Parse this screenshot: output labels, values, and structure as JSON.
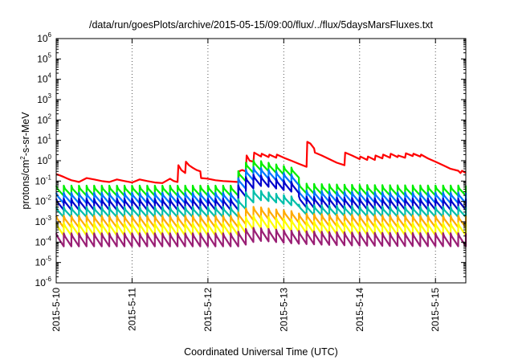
{
  "chart_data": {
    "type": "line",
    "title": "/data/run/goesPlots/archive/2015-05-15/09:00/flux/../flux/5daysMarsFluxes.txt",
    "xlabel": "Coordinated Universal Time (UTC)",
    "ylabel": "protons/cm²-s-sr-MeV",
    "yscale": "log",
    "ylim": [
      1e-06,
      1000000.0
    ],
    "xlim": [
      0,
      5.4
    ],
    "x_unit": "days since 2015-5-10 00:00 UTC",
    "grid": "dotted vertical lines at day boundaries",
    "xticks": [
      {
        "x": 0,
        "label": "2015-5-10"
      },
      {
        "x": 1,
        "label": "2015-5-11"
      },
      {
        "x": 2,
        "label": "2015-5-12"
      },
      {
        "x": 3,
        "label": "2015-5-13"
      },
      {
        "x": 4,
        "label": "2015-5-14"
      },
      {
        "x": 5,
        "label": "2015-5-15"
      }
    ],
    "yticks": [
      {
        "value": 1e-06,
        "base": "10",
        "exp": "-6"
      },
      {
        "value": 1e-05,
        "base": "10",
        "exp": "-5"
      },
      {
        "value": 0.0001,
        "base": "10",
        "exp": "-4"
      },
      {
        "value": 0.001,
        "base": "10",
        "exp": "-3"
      },
      {
        "value": 0.01,
        "base": "10",
        "exp": "-2"
      },
      {
        "value": 0.1,
        "base": "10",
        "exp": "-1"
      },
      {
        "value": 1.0,
        "base": "10",
        "exp": "0"
      },
      {
        "value": 10.0,
        "base": "10",
        "exp": "1"
      },
      {
        "value": 100.0,
        "base": "10",
        "exp": "2"
      },
      {
        "value": 1000.0,
        "base": "10",
        "exp": "3"
      },
      {
        "value": 10000.0,
        "base": "10",
        "exp": "4"
      },
      {
        "value": 100000.0,
        "base": "10",
        "exp": "5"
      },
      {
        "value": 1000000.0,
        "base": "10",
        "exp": "6"
      }
    ],
    "series": [
      {
        "color": "#ff0000",
        "x": [
          0,
          0.05,
          0.1,
          0.15,
          0.2,
          0.25,
          0.3,
          0.4,
          0.5,
          0.6,
          0.7,
          0.8,
          0.9,
          1.0,
          1.1,
          1.2,
          1.3,
          1.4,
          1.5,
          1.55,
          1.6,
          1.61,
          1.65,
          1.7,
          1.71,
          1.75,
          1.8,
          1.85,
          1.9,
          1.91,
          2.0,
          2.1,
          2.2,
          2.3,
          2.4,
          2.41,
          2.45,
          2.5,
          2.51,
          2.55,
          2.6,
          2.61,
          2.7,
          2.71,
          2.8,
          2.81,
          2.9,
          2.91,
          3.0,
          3.1,
          3.2,
          3.3,
          3.31,
          3.35,
          3.4,
          3.41,
          3.5,
          3.6,
          3.7,
          3.8,
          3.81,
          3.9,
          4.0,
          4.01,
          4.1,
          4.11,
          4.2,
          4.21,
          4.3,
          4.31,
          4.4,
          4.41,
          4.5,
          4.51,
          4.6,
          4.61,
          4.7,
          4.71,
          4.8,
          4.81,
          4.9,
          5.0,
          5.1,
          5.2,
          5.3,
          5.33,
          5.35,
          5.4
        ],
        "y": [
          0.22,
          0.19,
          0.16,
          0.13,
          0.11,
          0.1,
          0.09,
          0.14,
          0.12,
          0.1,
          0.09,
          0.12,
          0.1,
          0.085,
          0.12,
          0.1,
          0.085,
          0.08,
          0.13,
          0.1,
          0.09,
          0.6,
          0.35,
          0.25,
          0.9,
          0.6,
          0.45,
          0.35,
          0.3,
          0.14,
          0.13,
          0.11,
          0.1,
          0.095,
          0.09,
          0.3,
          0.35,
          0.3,
          1.8,
          1.0,
          0.9,
          2.5,
          1.6,
          2.2,
          1.5,
          2.0,
          1.4,
          2.0,
          1.4,
          1.0,
          0.7,
          0.5,
          8.5,
          7.0,
          4.0,
          2.5,
          1.8,
          1.2,
          0.8,
          0.6,
          2.5,
          1.8,
          1.2,
          1.6,
          1.1,
          1.6,
          1.1,
          1.8,
          1.3,
          2.0,
          1.4,
          2.2,
          1.5,
          1.8,
          1.4,
          2.3,
          1.7,
          2.2,
          1.6,
          2.0,
          1.3,
          0.9,
          0.6,
          0.4,
          0.32,
          0.25,
          0.32,
          0.25
        ]
      },
      {
        "color": "#00ee00",
        "base": 0.02,
        "event": 0.35,
        "amp": 3.0
      },
      {
        "color": "#0077ff",
        "base": 0.0085,
        "event": 0.15,
        "amp": 3.2
      },
      {
        "color": "#0000cc",
        "base": 0.004,
        "event": 0.06,
        "amp": 3.4
      },
      {
        "color": "#00bfaa",
        "base": 0.0018,
        "event": 0.012,
        "amp": 3.0
      },
      {
        "color": "#ffaa00",
        "base": 0.00055,
        "event": 0.0015,
        "amp": 3.6
      },
      {
        "color": "#ffff00",
        "base": 0.00022,
        "event": 0.0005,
        "amp": 4.0
      },
      {
        "color": "#9a1f75",
        "base": 6.5e-05,
        "event": 0.00012,
        "amp": 4.2
      }
    ],
    "legend": "none"
  }
}
